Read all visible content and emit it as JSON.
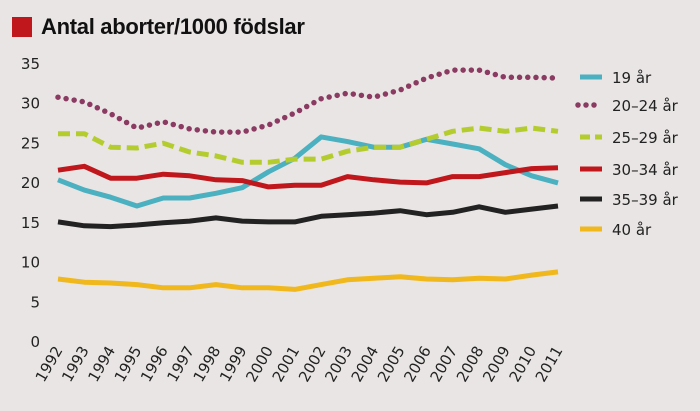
{
  "chart_data": {
    "type": "line",
    "title": "Antal aborter/1000 födslar",
    "xlabel": "",
    "ylabel": "",
    "ylim": [
      0,
      35
    ],
    "yticks": [
      "0",
      "5",
      "10",
      "15",
      "20",
      "25",
      "30",
      "35"
    ],
    "x": [
      "1992",
      "1993",
      "1994",
      "1995",
      "1996",
      "1997",
      "1998",
      "1999",
      "2000",
      "2001",
      "2002",
      "2003",
      "2004",
      "2005",
      "2006",
      "2007",
      "2008",
      "2009",
      "2010",
      "2011"
    ],
    "legend_position": "right",
    "grid": false,
    "series": [
      {
        "name": "19 år",
        "color": "#4bb0c0",
        "style": "solid",
        "values": [
          20.3,
          19.0,
          18.1,
          17.0,
          18.0,
          18.0,
          18.6,
          19.3,
          21.3,
          23.0,
          25.7,
          25.1,
          24.4,
          24.4,
          25.4,
          24.8,
          24.2,
          22.2,
          20.8,
          19.9
        ]
      },
      {
        "name": "20–24 år",
        "color": "#8b3a62",
        "style": "dotted",
        "values": [
          30.7,
          30.1,
          28.6,
          26.8,
          27.6,
          26.7,
          26.3,
          26.3,
          27.2,
          28.7,
          30.5,
          31.2,
          30.7,
          31.6,
          33.1,
          34.1,
          34.1,
          33.2,
          33.2,
          33.1
        ]
      },
      {
        "name": "25–29 år",
        "color": "#b5cc2e",
        "style": "dashed",
        "values": [
          26.1,
          26.1,
          24.4,
          24.3,
          24.9,
          23.8,
          23.3,
          22.5,
          22.5,
          22.9,
          22.9,
          23.9,
          24.4,
          24.4,
          25.4,
          26.4,
          26.8,
          26.4,
          26.8,
          26.4
        ]
      },
      {
        "name": "30–34 år",
        "color": "#c0171c",
        "style": "solid",
        "values": [
          21.5,
          22.0,
          20.5,
          20.5,
          21.0,
          20.8,
          20.3,
          20.2,
          19.4,
          19.6,
          19.6,
          20.7,
          20.3,
          20.0,
          19.9,
          20.7,
          20.7,
          21.2,
          21.7,
          21.8
        ]
      },
      {
        "name": "35–39 år",
        "color": "#222222",
        "style": "solid",
        "values": [
          15.0,
          14.5,
          14.4,
          14.6,
          14.9,
          15.1,
          15.5,
          15.1,
          15.0,
          15.0,
          15.7,
          15.9,
          16.1,
          16.4,
          15.9,
          16.2,
          16.9,
          16.2,
          16.6,
          17.0
        ]
      },
      {
        "name": "40 år",
        "color": "#f0b81c",
        "style": "solid",
        "values": [
          7.8,
          7.4,
          7.3,
          7.1,
          6.7,
          6.7,
          7.1,
          6.7,
          6.7,
          6.5,
          7.1,
          7.7,
          7.9,
          8.1,
          7.8,
          7.7,
          7.9,
          7.8,
          8.3,
          8.7
        ]
      }
    ]
  }
}
